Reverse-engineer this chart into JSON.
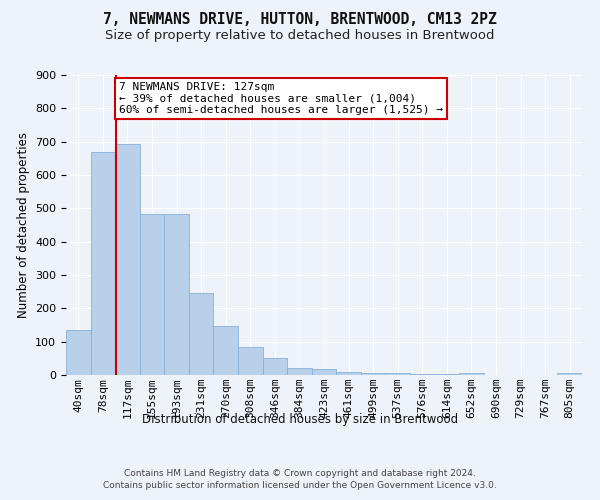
{
  "title": "7, NEWMANS DRIVE, HUTTON, BRENTWOOD, CM13 2PZ",
  "subtitle": "Size of property relative to detached houses in Brentwood",
  "xlabel": "Distribution of detached houses by size in Brentwood",
  "ylabel": "Number of detached properties",
  "categories": [
    "40sqm",
    "78sqm",
    "117sqm",
    "155sqm",
    "193sqm",
    "231sqm",
    "270sqm",
    "308sqm",
    "346sqm",
    "384sqm",
    "423sqm",
    "461sqm",
    "499sqm",
    "537sqm",
    "576sqm",
    "614sqm",
    "652sqm",
    "690sqm",
    "729sqm",
    "767sqm",
    "805sqm"
  ],
  "values": [
    135,
    670,
    693,
    483,
    483,
    247,
    148,
    83,
    50,
    22,
    18,
    10,
    7,
    5,
    4,
    3,
    6,
    0,
    0,
    0,
    7
  ],
  "bar_color": "#b8d0ea",
  "bar_edge_color": "#8ab0d8",
  "background_color": "#eef2f9",
  "grid_color": "#ffffff",
  "annotation_text_line1": "7 NEWMANS DRIVE: 127sqm",
  "annotation_text_line2": "← 39% of detached houses are smaller (1,004)",
  "annotation_text_line3": "60% of semi-detached houses are larger (1,525) →",
  "annotation_box_color": "#ffffff",
  "annotation_box_edge_color": "#cc0000",
  "red_line_x": 1.545,
  "red_line_color": "#cc0000",
  "footer_line1": "Contains HM Land Registry data © Crown copyright and database right 2024.",
  "footer_line2": "Contains public sector information licensed under the Open Government Licence v3.0.",
  "ylim": [
    0,
    900
  ],
  "yticks": [
    0,
    100,
    200,
    300,
    400,
    500,
    600,
    700,
    800,
    900
  ],
  "title_fontsize": 10.5,
  "subtitle_fontsize": 9.5,
  "axis_label_fontsize": 8.5,
  "tick_fontsize": 8,
  "annotation_fontsize": 8,
  "footer_fontsize": 6.5
}
